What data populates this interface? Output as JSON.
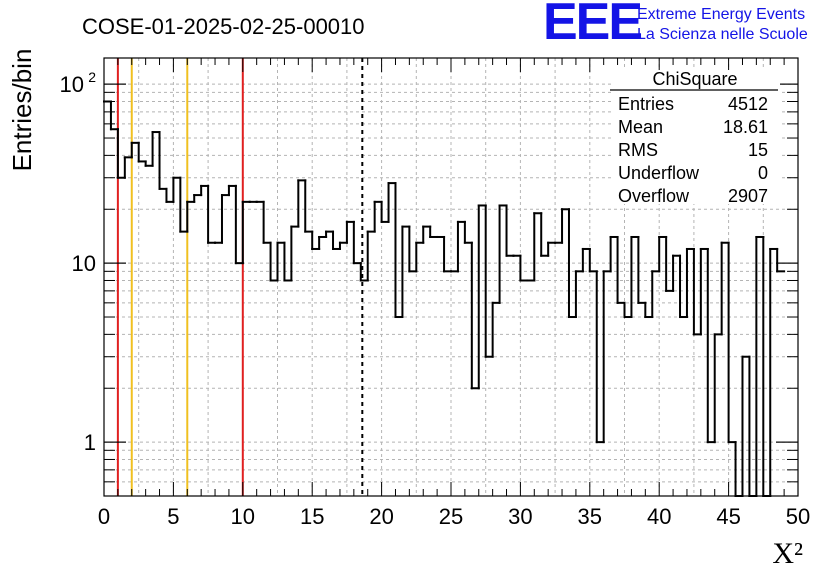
{
  "chart_data": {
    "type": "bar",
    "title": "COSE-01-2025-02-25-00010",
    "xlabel": "X²",
    "ylabel": "Entries/bin",
    "xlim": [
      0,
      50
    ],
    "ylim": [
      0.5,
      140
    ],
    "yscale": "log",
    "grid": true,
    "bin_width": 0.5,
    "x_ticks": [
      "0",
      "5",
      "10",
      "15",
      "20",
      "25",
      "30",
      "35",
      "40",
      "45",
      "50"
    ],
    "y_tick_labels": [
      {
        "value": 1,
        "label": "1"
      },
      {
        "value": 10,
        "label": "10"
      },
      {
        "value": 100,
        "label": "10",
        "exponent": "2"
      }
    ],
    "values": [
      80,
      56,
      30,
      39,
      47,
      37,
      35,
      54,
      26,
      22,
      30,
      15,
      22,
      24,
      27,
      13,
      13,
      24,
      27,
      10,
      22,
      22,
      22,
      13,
      8,
      13,
      8,
      16,
      29,
      15,
      12,
      14,
      15,
      12,
      13,
      17,
      10,
      8,
      15,
      22,
      17,
      28,
      5,
      16,
      9,
      13,
      16,
      14,
      14,
      9,
      9,
      17,
      13,
      2,
      21,
      3,
      6,
      21,
      11,
      11,
      8,
      8,
      19,
      11,
      13,
      13,
      20,
      5,
      9,
      12,
      9,
      1,
      9,
      14,
      6,
      5,
      14,
      6,
      5,
      9,
      14,
      7,
      11,
      5,
      12,
      4,
      12,
      1,
      4,
      13,
      1,
      0.3,
      3,
      0.3,
      14,
      0.3,
      12,
      9
    ],
    "vertical_lines": [
      {
        "x": 1,
        "color": "#e02020",
        "style": "solid"
      },
      {
        "x": 2,
        "color": "#f0c020",
        "style": "solid"
      },
      {
        "x": 6,
        "color": "#f0c020",
        "style": "solid"
      },
      {
        "x": 10,
        "color": "#e02020",
        "style": "solid"
      },
      {
        "x": 18.61,
        "color": "#000000",
        "style": "dashed"
      }
    ],
    "stats": {
      "name": "ChiSquare",
      "rows": [
        {
          "label": "Entries",
          "value": "4512"
        },
        {
          "label": "Mean",
          "value": "18.61"
        },
        {
          "label": "RMS",
          "value": "15"
        },
        {
          "label": "Underflow",
          "value": "0"
        },
        {
          "label": "Overflow",
          "value": "2907"
        }
      ]
    }
  },
  "logo": {
    "mark": "EEE",
    "line1": "Extreme Energy Events",
    "line2": "La Scienza nelle Scuole",
    "color": "#1414e6"
  }
}
